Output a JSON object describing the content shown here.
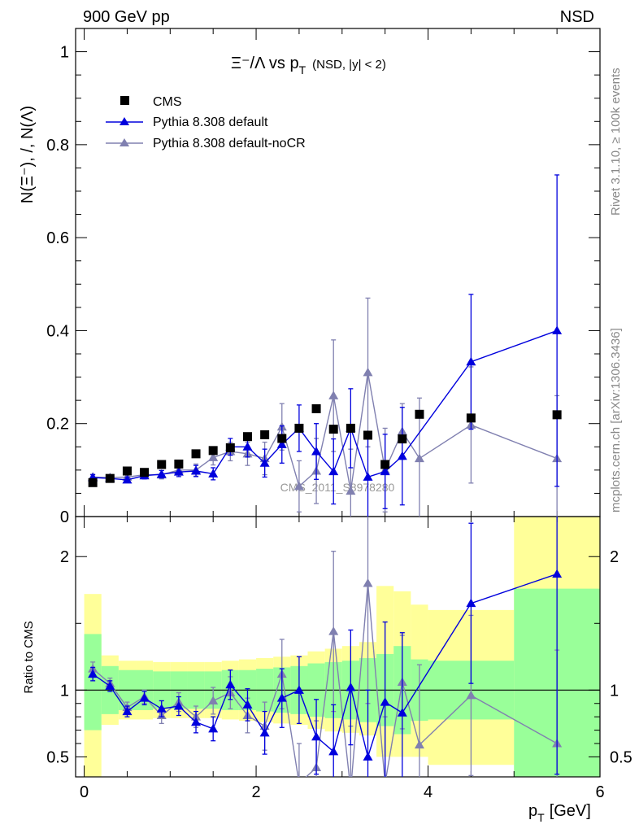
{
  "header": {
    "left": "900 GeV pp",
    "right": "NSD"
  },
  "side_labels": {
    "rivet": "Rivet 3.1.10, ≥ 100k events",
    "mcplots": "mcplots.cern.ch [arXiv:1306.3436]"
  },
  "watermark": "CMS_2011_S8978280",
  "title": {
    "main": "Ξ⁻/Λ  vs p",
    "sub": "T",
    "suffix": "(NSD, |y| < 2)"
  },
  "ylabel_main": "N(Ξ⁻), /, N(Λ)",
  "ylabel_ratio": "Ratio to CMS",
  "xlabel": "p",
  "xlabel_sub": "T",
  "xlabel_unit": "[GeV]",
  "legend": [
    {
      "label": "CMS",
      "marker": "square",
      "color": "#000000"
    },
    {
      "label": "Pythia 8.308 default",
      "marker": "triangle",
      "color": "#0000dd"
    },
    {
      "label": "Pythia 8.308 default-noCR",
      "marker": "triangle",
      "color": "#8080b0"
    }
  ],
  "colors": {
    "cms": "#000000",
    "default": "#0000dd",
    "nocr": "#8080b0",
    "band_inner": "#99ff99",
    "band_outer": "#ffff99"
  },
  "chart_data": {
    "type": "scatter",
    "xlim": [
      -0.1,
      6.0
    ],
    "main_ylim": [
      0,
      1.05
    ],
    "main_yticks": [
      "0",
      "0.2",
      "0.4",
      "0.6",
      "0.8",
      "1"
    ],
    "ratio_ylim": [
      0.35,
      2.3
    ],
    "ratio_yticks": [
      "0.5",
      "1",
      "2"
    ],
    "xticks": [
      "0",
      "2",
      "4",
      "6"
    ],
    "series": [
      {
        "name": "CMS",
        "x": [
          0.1,
          0.3,
          0.5,
          0.7,
          0.9,
          1.1,
          1.3,
          1.5,
          1.7,
          1.9,
          2.1,
          2.3,
          2.5,
          2.7,
          2.9,
          3.1,
          3.3,
          3.5,
          3.7,
          3.9,
          4.5,
          5.5
        ],
        "y": [
          0.073,
          0.082,
          0.098,
          0.095,
          0.112,
          0.113,
          0.135,
          0.142,
          0.148,
          0.172,
          0.176,
          0.168,
          0.19,
          0.232,
          0.188,
          0.19,
          0.175,
          0.112,
          0.167,
          0.22,
          0.212,
          0.219
        ]
      },
      {
        "name": "Pythia 8.308 default",
        "x": [
          0.1,
          0.3,
          0.5,
          0.7,
          0.9,
          1.1,
          1.3,
          1.5,
          1.7,
          1.9,
          2.1,
          2.3,
          2.5,
          2.7,
          2.9,
          3.1,
          3.3,
          3.5,
          3.7,
          4.5,
          5.5
        ],
        "y": [
          0.084,
          0.082,
          0.079,
          0.088,
          0.091,
          0.096,
          0.098,
          0.092,
          0.15,
          0.15,
          0.115,
          0.155,
          0.19,
          0.14,
          0.097,
          0.19,
          0.085,
          0.097,
          0.13,
          0.333,
          0.4
        ],
        "err": [
          0.006,
          0.005,
          0.006,
          0.007,
          0.008,
          0.01,
          0.012,
          0.013,
          0.018,
          0.022,
          0.03,
          0.04,
          0.05,
          0.06,
          0.07,
          0.085,
          0.09,
          0.08,
          0.105,
          0.145,
          0.335
        ]
      },
      {
        "name": "Pythia 8.308 default-noCR",
        "x": [
          0.1,
          0.3,
          0.5,
          0.7,
          0.9,
          1.1,
          1.3,
          1.5,
          1.7,
          1.9,
          2.1,
          2.3,
          2.5,
          2.7,
          2.9,
          3.1,
          3.3,
          3.5,
          3.7,
          3.9,
          4.5,
          5.5
        ],
        "y": [
          0.085,
          0.084,
          0.085,
          0.09,
          0.09,
          0.1,
          0.1,
          0.127,
          0.14,
          0.135,
          0.125,
          0.193,
          0.065,
          0.098,
          0.26,
          0.055,
          0.31,
          0.1,
          0.183,
          0.125,
          0.197,
          0.125
        ],
        "err": [
          0.006,
          0.006,
          0.007,
          0.008,
          0.009,
          0.011,
          0.013,
          0.016,
          0.02,
          0.025,
          0.035,
          0.05,
          0.055,
          0.07,
          0.12,
          0.09,
          0.16,
          0.09,
          0.06,
          0.13,
          0.125,
          0.135
        ]
      }
    ],
    "ratio_series": [
      {
        "name": "Pythia 8.308 default",
        "x": [
          0.1,
          0.3,
          0.5,
          0.7,
          0.9,
          1.1,
          1.3,
          1.5,
          1.7,
          1.9,
          2.1,
          2.3,
          2.5,
          2.7,
          2.9,
          3.1,
          3.3,
          3.5,
          3.7,
          4.5,
          5.5
        ],
        "y": [
          1.12,
          1.03,
          0.84,
          0.94,
          0.86,
          0.88,
          0.76,
          0.71,
          1.04,
          0.89,
          0.68,
          0.94,
          1.0,
          0.65,
          0.54,
          1.02,
          0.5,
          0.91,
          0.83,
          1.65,
          1.87
        ],
        "err": [
          0.05,
          0.04,
          0.04,
          0.05,
          0.06,
          0.07,
          0.08,
          0.09,
          0.11,
          0.12,
          0.16,
          0.22,
          0.25,
          0.28,
          0.35,
          0.43,
          0.5,
          0.6,
          0.6,
          0.6,
          1.5
        ]
      },
      {
        "name": "Pythia 8.308 default-noCR",
        "x": [
          0.1,
          0.3,
          0.5,
          0.7,
          0.9,
          1.1,
          1.3,
          1.5,
          1.7,
          1.9,
          2.1,
          2.3,
          2.5,
          2.7,
          2.9,
          3.1,
          3.3,
          3.5,
          3.7,
          3.9,
          4.5,
          5.5
        ],
        "y": [
          1.16,
          1.05,
          0.87,
          0.95,
          0.81,
          0.91,
          0.8,
          0.92,
          0.98,
          0.81,
          0.73,
          1.12,
          0.3,
          0.42,
          1.44,
          0.25,
          1.8,
          0.3,
          1.06,
          0.59,
          0.96,
          0.6
        ],
        "err": [
          0.05,
          0.04,
          0.04,
          0.05,
          0.06,
          0.07,
          0.08,
          0.1,
          0.12,
          0.13,
          0.18,
          0.26,
          0.3,
          0.35,
          0.6,
          0.48,
          0.9,
          0.5,
          0.35,
          0.6,
          0.6,
          0.7
        ]
      }
    ],
    "bands": [
      {
        "x0": 0.0,
        "x1": 0.2,
        "inner": [
          0.7,
          1.42
        ],
        "outer": [
          0.3,
          1.72
        ]
      },
      {
        "x0": 0.2,
        "x1": 0.4,
        "inner": [
          0.82,
          1.18
        ],
        "outer": [
          0.74,
          1.26
        ]
      },
      {
        "x0": 0.4,
        "x1": 0.6,
        "inner": [
          0.85,
          1.15
        ],
        "outer": [
          0.78,
          1.22
        ]
      },
      {
        "x0": 0.6,
        "x1": 0.8,
        "inner": [
          0.85,
          1.15
        ],
        "outer": [
          0.78,
          1.22
        ]
      },
      {
        "x0": 0.8,
        "x1": 1.0,
        "inner": [
          0.86,
          1.14
        ],
        "outer": [
          0.79,
          1.21
        ]
      },
      {
        "x0": 1.0,
        "x1": 1.2,
        "inner": [
          0.86,
          1.14
        ],
        "outer": [
          0.79,
          1.21
        ]
      },
      {
        "x0": 1.2,
        "x1": 1.4,
        "inner": [
          0.86,
          1.14
        ],
        "outer": [
          0.79,
          1.21
        ]
      },
      {
        "x0": 1.4,
        "x1": 1.6,
        "inner": [
          0.86,
          1.14
        ],
        "outer": [
          0.79,
          1.21
        ]
      },
      {
        "x0": 1.6,
        "x1": 1.8,
        "inner": [
          0.85,
          1.15
        ],
        "outer": [
          0.78,
          1.22
        ]
      },
      {
        "x0": 1.8,
        "x1": 2.0,
        "inner": [
          0.85,
          1.15
        ],
        "outer": [
          0.77,
          1.23
        ]
      },
      {
        "x0": 2.0,
        "x1": 2.2,
        "inner": [
          0.84,
          1.16
        ],
        "outer": [
          0.76,
          1.24
        ]
      },
      {
        "x0": 2.2,
        "x1": 2.4,
        "inner": [
          0.83,
          1.17
        ],
        "outer": [
          0.75,
          1.25
        ]
      },
      {
        "x0": 2.4,
        "x1": 2.6,
        "inner": [
          0.82,
          1.18
        ],
        "outer": [
          0.74,
          1.26
        ]
      },
      {
        "x0": 2.6,
        "x1": 2.8,
        "inner": [
          0.8,
          1.2
        ],
        "outer": [
          0.71,
          1.29
        ]
      },
      {
        "x0": 2.8,
        "x1": 3.0,
        "inner": [
          0.79,
          1.21
        ],
        "outer": [
          0.69,
          1.31
        ]
      },
      {
        "x0": 3.0,
        "x1": 3.2,
        "inner": [
          0.78,
          1.22
        ],
        "outer": [
          0.68,
          1.33
        ]
      },
      {
        "x0": 3.2,
        "x1": 3.4,
        "inner": [
          0.76,
          1.24
        ],
        "outer": [
          0.66,
          1.36
        ]
      },
      {
        "x0": 3.4,
        "x1": 3.6,
        "inner": [
          0.73,
          1.27
        ],
        "outer": [
          0.5,
          1.78
        ]
      },
      {
        "x0": 3.6,
        "x1": 3.8,
        "inner": [
          0.67,
          1.33
        ],
        "outer": [
          0.5,
          1.74
        ]
      },
      {
        "x0": 3.8,
        "x1": 4.0,
        "inner": [
          0.77,
          1.23
        ],
        "outer": [
          0.5,
          1.64
        ]
      },
      {
        "x0": 4.0,
        "x1": 5.0,
        "inner": [
          0.78,
          1.22
        ],
        "outer": [
          0.44,
          1.6
        ]
      },
      {
        "x0": 5.0,
        "x1": 6.0,
        "inner": [
          0.3,
          1.76
        ],
        "outer": [
          0.3,
          2.3
        ]
      }
    ]
  }
}
